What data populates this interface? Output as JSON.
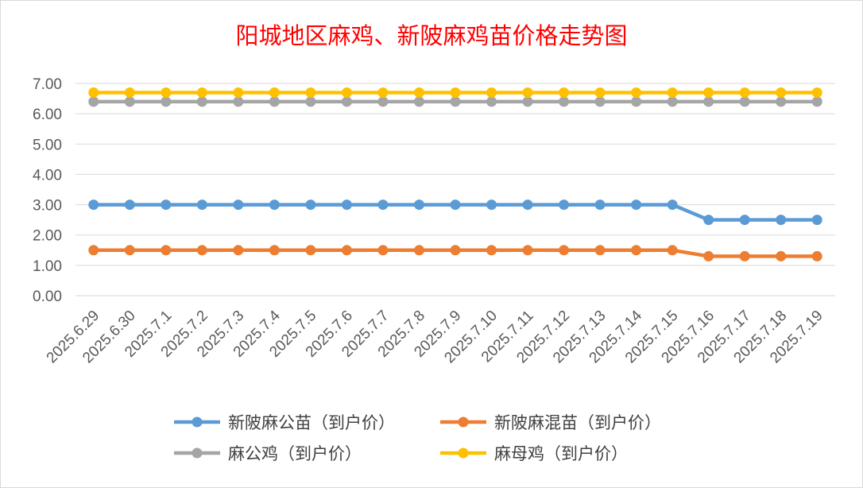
{
  "chart_data": {
    "type": "line",
    "title": "阳城地区麻鸡、新陂麻鸡苗价格走势图",
    "xlabel": "",
    "ylabel": "",
    "ylim": [
      0,
      7
    ],
    "ytick_labels": [
      "0.00",
      "1.00",
      "2.00",
      "3.00",
      "4.00",
      "5.00",
      "6.00",
      "7.00"
    ],
    "grid": true,
    "legend_position": "bottom",
    "categories": [
      "2025.6.29",
      "2025.6.30",
      "2025.7.1",
      "2025.7.2",
      "2025.7.3",
      "2025.7.4",
      "2025.7.5",
      "2025.7.6",
      "2025.7.7",
      "2025.7.8",
      "2025.7.9",
      "2025.7.10",
      "2025.7.11",
      "2025.7.12",
      "2025.7.13",
      "2025.7.14",
      "2025.7.15",
      "2025.7.16",
      "2025.7.17",
      "2025.7.18",
      "2025.7.19"
    ],
    "series": [
      {
        "name": "新陂麻公苗（到户价）",
        "color": "#5b9bd5",
        "values": [
          3.0,
          3.0,
          3.0,
          3.0,
          3.0,
          3.0,
          3.0,
          3.0,
          3.0,
          3.0,
          3.0,
          3.0,
          3.0,
          3.0,
          3.0,
          3.0,
          3.0,
          2.5,
          2.5,
          2.5,
          2.5
        ]
      },
      {
        "name": "新陂麻混苗（到户价）",
        "color": "#ed7d31",
        "values": [
          1.5,
          1.5,
          1.5,
          1.5,
          1.5,
          1.5,
          1.5,
          1.5,
          1.5,
          1.5,
          1.5,
          1.5,
          1.5,
          1.5,
          1.5,
          1.5,
          1.5,
          1.3,
          1.3,
          1.3,
          1.3
        ]
      },
      {
        "name": "麻公鸡（到户价）",
        "color": "#a5a5a5",
        "values": [
          6.4,
          6.4,
          6.4,
          6.4,
          6.4,
          6.4,
          6.4,
          6.4,
          6.4,
          6.4,
          6.4,
          6.4,
          6.4,
          6.4,
          6.4,
          6.4,
          6.4,
          6.4,
          6.4,
          6.4,
          6.4
        ]
      },
      {
        "name": "麻母鸡（到户价）",
        "color": "#ffc000",
        "values": [
          6.7,
          6.7,
          6.7,
          6.7,
          6.7,
          6.7,
          6.7,
          6.7,
          6.7,
          6.7,
          6.7,
          6.7,
          6.7,
          6.7,
          6.7,
          6.7,
          6.7,
          6.7,
          6.7,
          6.7,
          6.7
        ]
      }
    ]
  }
}
